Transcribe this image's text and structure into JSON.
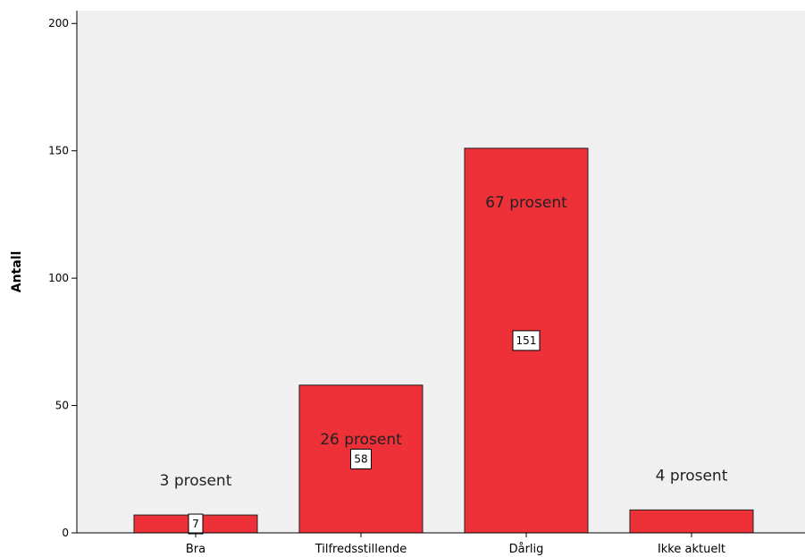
{
  "chart_data": {
    "type": "bar",
    "title": "",
    "xlabel": "",
    "ylabel": "Antall",
    "ylim": [
      0,
      200
    ],
    "yticks": [
      0,
      50,
      100,
      150,
      200
    ],
    "categories": [
      "Bra",
      "Tilfredsstillende",
      "Dårlig",
      "Ikke aktuelt"
    ],
    "values": [
      7,
      58,
      151,
      9
    ],
    "value_labels": [
      "7",
      "58",
      "151",
      ""
    ],
    "percent_labels": [
      "3 prosent",
      "26 prosent",
      "67 prosent",
      "4 prosent"
    ],
    "grid": false,
    "colors": {
      "bar_fill": "#ee3038",
      "bar_stroke": "#222222",
      "plot_background": "#f0f0f0",
      "axis": "#000000"
    }
  }
}
